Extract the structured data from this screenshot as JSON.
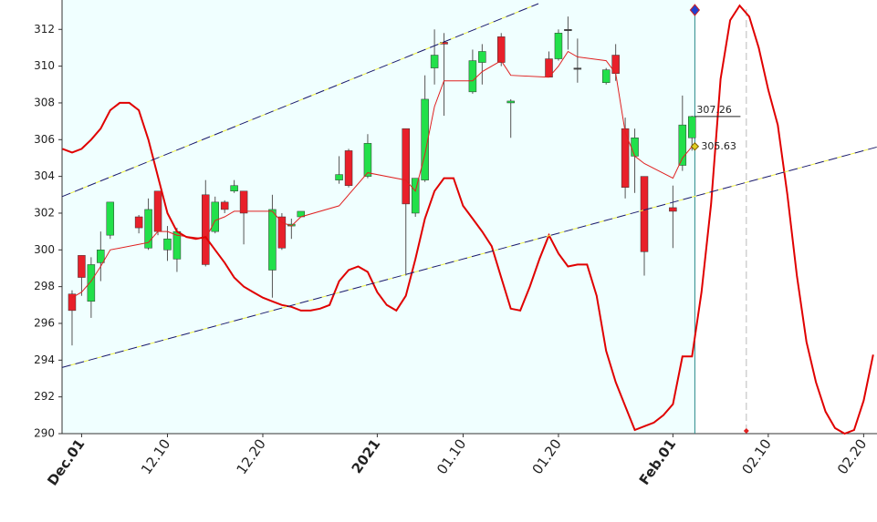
{
  "chart_data": {
    "type": "candlestick",
    "xlim": [
      -1.05,
      84.4
    ],
    "ylim": [
      290,
      313.6
    ],
    "yticks": [
      290,
      292,
      294,
      296,
      298,
      300,
      302,
      304,
      306,
      308,
      310,
      312
    ],
    "xticks": [
      {
        "value": 1,
        "label": "Dec.01",
        "color": "#8b1a1a"
      },
      {
        "value": 10,
        "label": "12.10",
        "color": "#666666"
      },
      {
        "value": 20,
        "label": "12.20",
        "color": "#666666"
      },
      {
        "value": 32,
        "label": "2021",
        "color": "#8b1a1a"
      },
      {
        "value": 41,
        "label": "01.10",
        "color": "#666666"
      },
      {
        "value": 51,
        "label": "01.20",
        "color": "#666666"
      },
      {
        "value": 63,
        "label": "Feb.01",
        "color": "#8b1a1a"
      },
      {
        "value": 73,
        "label": "02.10",
        "color": "#666666"
      },
      {
        "value": 83,
        "label": "02.20",
        "color": "#666666"
      }
    ],
    "up_color": "#22e04a",
    "down_color": "#e8202a",
    "flat_color": "#444444",
    "candles": {
      "x": [
        0,
        1,
        2,
        3,
        4,
        7,
        8,
        9,
        10,
        11,
        14,
        15,
        16,
        17,
        18,
        21,
        22,
        23,
        24,
        28,
        29,
        31,
        35,
        36,
        37,
        38,
        39,
        42,
        43,
        45,
        46,
        50,
        51,
        52,
        53,
        56,
        57,
        58,
        59,
        60,
        63,
        64,
        65
      ],
      "open": [
        297.6,
        299.7,
        297.2,
        299.3,
        300.8,
        301.8,
        300.1,
        303.2,
        300.0,
        299.5,
        303.0,
        301.0,
        302.6,
        303.2,
        303.2,
        298.9,
        301.8,
        301.3,
        301.8,
        303.8,
        305.4,
        304.0,
        306.6,
        302.0,
        303.8,
        309.9,
        311.3,
        308.6,
        310.2,
        311.6,
        308.0,
        310.4,
        310.4,
        312.0,
        309.9,
        309.1,
        310.6,
        306.6,
        305.1,
        304.0,
        302.3,
        304.6,
        306.1
      ],
      "high": [
        297.8,
        299.7,
        299.6,
        301.0,
        302.6,
        301.9,
        302.8,
        303.2,
        301.3,
        301.2,
        303.8,
        302.9,
        302.7,
        303.8,
        303.2,
        303.0,
        302.0,
        301.7,
        302.1,
        305.1,
        305.5,
        306.3,
        306.6,
        303.9,
        309.5,
        312.0,
        311.8,
        310.9,
        311.2,
        311.8,
        308.2,
        310.8,
        312.0,
        312.7,
        311.5,
        309.9,
        311.2,
        307.2,
        306.6,
        304.0,
        303.5,
        308.4,
        307.3
      ],
      "low": [
        294.8,
        297.5,
        296.3,
        298.3,
        300.6,
        300.9,
        300.0,
        300.8,
        299.4,
        298.8,
        299.1,
        300.9,
        302.0,
        303.1,
        300.3,
        297.4,
        300.0,
        300.6,
        301.8,
        303.6,
        303.4,
        303.9,
        298.6,
        301.8,
        303.7,
        309.0,
        307.3,
        308.5,
        309.0,
        310.0,
        306.1,
        309.4,
        310.3,
        310.9,
        309.1,
        309.0,
        309.2,
        302.8,
        303.1,
        298.6,
        300.1,
        304.3,
        305.4
      ],
      "close": [
        296.7,
        298.5,
        299.2,
        300.0,
        302.6,
        301.2,
        302.2,
        301.0,
        300.6,
        301.0,
        299.2,
        302.6,
        302.2,
        303.5,
        302.0,
        302.2,
        300.1,
        301.4,
        302.1,
        304.1,
        303.5,
        305.8,
        302.5,
        303.9,
        308.2,
        310.6,
        311.2,
        310.3,
        310.8,
        310.2,
        308.1,
        309.4,
        311.8,
        312.0,
        309.9,
        309.8,
        309.6,
        303.4,
        306.1,
        299.9,
        302.1,
        306.8,
        307.26
      ]
    },
    "lines": [
      {
        "color": "#e02020",
        "width": 1,
        "x": [
          0,
          1,
          2,
          3,
          4,
          7,
          8,
          9,
          10,
          11,
          14,
          15,
          16,
          17,
          18,
          21,
          22,
          23,
          24,
          28,
          29,
          31,
          35,
          36,
          37,
          38,
          39,
          42,
          43,
          45,
          46,
          50,
          51,
          52,
          53,
          56,
          57,
          58,
          59,
          60,
          63,
          64,
          65
        ],
        "values": [
          297.4,
          297.7,
          298.3,
          299.1,
          300.0,
          300.3,
          300.4,
          301.0,
          301.0,
          300.8,
          300.6,
          301.6,
          301.8,
          302.1,
          302.1,
          302.1,
          301.5,
          301.3,
          301.8,
          302.4,
          303.0,
          304.2,
          303.8,
          303.2,
          305.2,
          307.8,
          309.2,
          309.2,
          309.7,
          310.3,
          309.5,
          309.4,
          310.0,
          310.8,
          310.5,
          310.3,
          309.6,
          306.4,
          305.1,
          304.7,
          303.9,
          305.0,
          305.63
        ]
      },
      {
        "color": "#e00000",
        "width": 2,
        "x": [
          -1,
          0,
          1,
          2,
          3,
          4,
          5,
          6,
          7,
          8,
          9,
          10,
          11,
          12,
          13,
          14,
          15,
          16,
          17,
          18,
          19,
          20,
          21,
          22,
          23,
          24,
          25,
          26,
          27,
          28,
          29,
          30,
          31,
          32,
          33,
          34,
          35,
          36,
          37,
          38,
          39,
          40,
          41,
          42,
          43,
          44,
          45,
          46,
          47,
          48,
          49,
          50,
          51,
          52,
          53,
          54,
          55,
          56,
          57,
          58,
          59,
          60,
          61,
          62,
          63,
          64,
          65,
          66,
          67,
          68,
          69,
          70,
          71,
          72,
          73,
          74,
          75,
          76,
          77,
          78,
          79,
          80,
          81,
          82,
          83,
          84
        ],
        "values": [
          305.5,
          305.3,
          305.5,
          306,
          306.6,
          307.6,
          308,
          308,
          307.6,
          306,
          304,
          302,
          301,
          300.7,
          300.6,
          300.7,
          300,
          299.3,
          298.5,
          298,
          297.7,
          297.4,
          297.2,
          297,
          296.9,
          296.7,
          296.7,
          296.8,
          297,
          298.3,
          298.9,
          299.1,
          298.8,
          297.7,
          297,
          296.7,
          297.5,
          299.5,
          301.7,
          303.2,
          303.9,
          303.9,
          302.4,
          301.7,
          301,
          300.2,
          298.5,
          296.8,
          296.7,
          298,
          299.5,
          300.8,
          299.8,
          299.1,
          299.2,
          299.2,
          297.5,
          294.5,
          292.8,
          291.5,
          290.2,
          290.4,
          290.6,
          291,
          291.6,
          294.2,
          294.2,
          297.7,
          302.5,
          309.3,
          312.5,
          313.3,
          312.7,
          311,
          308.7,
          306.8,
          303,
          298.6,
          295,
          292.8,
          291.2,
          290.3,
          290,
          290.2,
          291.8,
          294.3
        ]
      },
      {
        "color": "#1a1a6a",
        "dash": true,
        "width": 1,
        "x": [
          -1.05,
          48.9
        ],
        "values": [
          302.9,
          313.4
        ]
      },
      {
        "color": "#1a1a6a",
        "dash": true,
        "width": 1,
        "x": [
          -1.05,
          84.4
        ],
        "values": [
          293.6,
          305.6
        ]
      }
    ],
    "vlines": [
      {
        "x": 65.3,
        "color": "#2a8a8a",
        "dash": false,
        "shade": "#f0ffff"
      },
      {
        "x": 70.7,
        "color": "#bbbbbb",
        "dash": true
      }
    ],
    "annotations": [
      {
        "text": "307.26",
        "x": 65.3,
        "y": 307.26,
        "marker": "line"
      },
      {
        "text": "305.63",
        "x": 65.3,
        "y": 305.63,
        "marker": "diamond"
      }
    ]
  }
}
